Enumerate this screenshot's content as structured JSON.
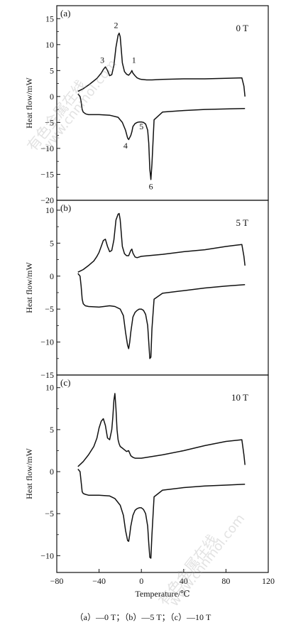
{
  "figure": {
    "caption": "（a）—0 T；（b）—5 T；（c）—10 T",
    "watermark_cn": "有色金属在线",
    "watermark_url": "www.cnnmol.com"
  },
  "chart_data": [
    {
      "type": "line",
      "panel": "(a)",
      "field": "0 T",
      "xlabel": "",
      "ylabel": "Heat flow/mW",
      "xlim": [
        -80,
        120
      ],
      "ylim": [
        -20,
        17.5
      ],
      "yticks": [
        15,
        10,
        5,
        0,
        -5,
        -10,
        -15,
        -20
      ],
      "series": [
        {
          "x": [
            -60,
            -55,
            -50,
            -45,
            -42,
            -38,
            -36,
            -34,
            -32,
            -30,
            -28,
            -26,
            -24,
            -22,
            -21,
            -20,
            -19,
            -18,
            -16,
            -14,
            -12,
            -10,
            -9,
            -8,
            -6,
            -4,
            -2,
            0,
            5,
            10,
            20,
            40,
            60,
            80,
            95,
            97,
            98
          ],
          "y": [
            1,
            1.5,
            2.2,
            3,
            3.5,
            4.5,
            5.2,
            5.7,
            5,
            4,
            4.2,
            6,
            9.5,
            11.8,
            12.2,
            11.5,
            9,
            6.5,
            4.8,
            4.3,
            4.1,
            4.6,
            5,
            4.5,
            4,
            3.6,
            3.4,
            3.3,
            3.2,
            3.2,
            3.3,
            3.4,
            3.4,
            3.5,
            3.6,
            2,
            0
          ]
        },
        {
          "x": [
            -60,
            -58,
            -57,
            -56,
            -55,
            -53,
            -52,
            -50,
            -40,
            -30,
            -22,
            -18,
            -15,
            -13,
            -12,
            -10,
            -9,
            -8,
            -6,
            -4,
            -2,
            0,
            2,
            4,
            6,
            7,
            8,
            9,
            10,
            12,
            20,
            40,
            60,
            80,
            98
          ],
          "y": [
            0.5,
            0,
            -1,
            -2.5,
            -3,
            -3.3,
            -3.4,
            -3.5,
            -3.5,
            -3.6,
            -4,
            -5,
            -6.5,
            -8,
            -8.3,
            -7.5,
            -6.8,
            -5.8,
            -5.2,
            -5,
            -4.9,
            -4.9,
            -5,
            -5.3,
            -6.5,
            -9,
            -14,
            -16,
            -13,
            -4.5,
            -3,
            -2.7,
            -2.5,
            -2.4,
            -2.3
          ]
        }
      ],
      "peak_labels": [
        {
          "text": "1",
          "x": -7,
          "y": 6.5
        },
        {
          "text": "2",
          "x": -24,
          "y": 13.2
        },
        {
          "text": "3",
          "x": -37,
          "y": 6.5
        },
        {
          "text": "4",
          "x": -15,
          "y": -10
        },
        {
          "text": "5",
          "x": 0,
          "y": -6.3
        },
        {
          "text": "6",
          "x": 9,
          "y": -17.9
        }
      ]
    },
    {
      "type": "line",
      "panel": "(b)",
      "field": "5 T",
      "xlabel": "",
      "ylabel": "Heat flow/mW",
      "xlim": [
        -80,
        120
      ],
      "ylim": [
        -15,
        11.5
      ],
      "yticks": [
        10,
        5,
        0,
        -5,
        -10,
        -15
      ],
      "series": [
        {
          "x": [
            -60,
            -55,
            -50,
            -45,
            -42,
            -40,
            -38,
            -36,
            -34,
            -32,
            -30,
            -28,
            -26,
            -24,
            -22,
            -21,
            -20,
            -19,
            -18,
            -16,
            -14,
            -12,
            -10,
            -9,
            -8,
            -6,
            -4,
            -2,
            0,
            20,
            40,
            60,
            80,
            90,
            95,
            97,
            98
          ],
          "y": [
            0.6,
            1,
            1.6,
            2.3,
            3,
            3.6,
            4.5,
            5.4,
            5.6,
            4.5,
            3.7,
            3.9,
            5.5,
            8.5,
            9.4,
            9.5,
            8.5,
            6.5,
            4.5,
            3.4,
            3.1,
            3.1,
            3.9,
            4.1,
            3.5,
            2.9,
            2.8,
            2.9,
            3,
            3.3,
            3.7,
            4,
            4.5,
            4.7,
            4.8,
            3,
            1.6
          ]
        },
        {
          "x": [
            -60,
            -58,
            -57,
            -56,
            -55,
            -53,
            -50,
            -40,
            -30,
            -25,
            -20,
            -17,
            -15,
            -13,
            -12,
            -11,
            -10,
            -8,
            -6,
            -4,
            -2,
            0,
            2,
            4,
            6,
            7,
            8,
            9,
            10,
            12,
            20,
            40,
            60,
            80,
            98
          ],
          "y": [
            0.4,
            0,
            -1.5,
            -3.5,
            -4.2,
            -4.5,
            -4.6,
            -4.7,
            -4.5,
            -4.6,
            -5,
            -6,
            -8.5,
            -10.5,
            -11,
            -10,
            -8.5,
            -6.2,
            -5.5,
            -5.2,
            -5,
            -5,
            -5.2,
            -5.8,
            -7.5,
            -10,
            -12.5,
            -12.3,
            -8,
            -3.5,
            -2.6,
            -2.2,
            -1.8,
            -1.5,
            -1.3
          ]
        }
      ],
      "peak_labels": []
    },
    {
      "type": "line",
      "panel": "(c)",
      "field": "10 T",
      "xlabel": "Temperature/℃",
      "ylabel": "Heat flow/mW",
      "xlim": [
        -80,
        120
      ],
      "ylim": [
        -12,
        11.5
      ],
      "xticks": [
        -80,
        -40,
        0,
        40,
        80,
        120
      ],
      "yticks": [
        10,
        5,
        0,
        -5,
        -10
      ],
      "series": [
        {
          "x": [
            -60,
            -55,
            -50,
            -45,
            -42,
            -40,
            -38,
            -36,
            -34,
            -32,
            -30,
            -28,
            -27,
            -26,
            -25,
            -24,
            -23,
            -22,
            -21,
            -20,
            -18,
            -16,
            -14,
            -12,
            -10,
            -8,
            -6,
            -4,
            -2,
            0,
            20,
            40,
            60,
            80,
            95,
            97,
            98
          ],
          "y": [
            0.6,
            1.2,
            2,
            3,
            4,
            5.2,
            6,
            6.3,
            5.5,
            4,
            3.8,
            5,
            6.5,
            8.5,
            9.3,
            7.5,
            5,
            3.8,
            3.3,
            3,
            2.8,
            2.6,
            2.4,
            2.5,
            1.9,
            1.7,
            1.6,
            1.6,
            1.6,
            1.6,
            2,
            2.5,
            3.1,
            3.6,
            3.8,
            2,
            0.8
          ]
        },
        {
          "x": [
            -60,
            -58,
            -57,
            -56,
            -55,
            -53,
            -50,
            -40,
            -30,
            -25,
            -20,
            -17,
            -15,
            -13,
            -12,
            -11,
            -10,
            -8,
            -6,
            -4,
            -2,
            0,
            2,
            4,
            6,
            7,
            8,
            9,
            10,
            12,
            20,
            40,
            60,
            80,
            98
          ],
          "y": [
            0.3,
            0,
            -1.2,
            -2.4,
            -2.6,
            -2.7,
            -2.8,
            -2.8,
            -2.9,
            -3.2,
            -4,
            -5.2,
            -7,
            -8.2,
            -8.3,
            -7.5,
            -6.5,
            -5.2,
            -4.6,
            -4.4,
            -4.3,
            -4.3,
            -4.5,
            -5,
            -6.5,
            -8.5,
            -10.2,
            -10.3,
            -7.5,
            -3,
            -2.2,
            -1.9,
            -1.7,
            -1.6,
            -1.5
          ]
        }
      ],
      "peak_labels": []
    }
  ]
}
